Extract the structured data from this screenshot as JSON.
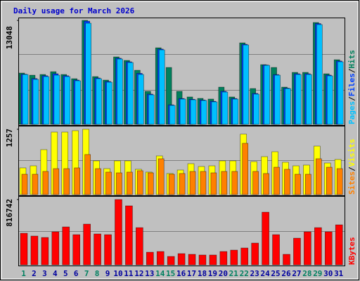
{
  "chart_data": [
    {
      "type": "bar",
      "title": "Daily usage for March 2026",
      "title_color": "#0000cc",
      "ylim": [
        0,
        13048
      ],
      "yticks": [
        13048
      ],
      "legend_separator": "/",
      "series": [
        {
          "name": "Hits",
          "color": "#00805c",
          "values": [
            6436,
            6171,
            6259,
            6612,
            6259,
            5730,
            13048,
            5995,
            5554,
            8463,
            8023,
            6788,
            4144,
            9609,
            7141,
            4144,
            3438,
            3262,
            3174,
            4672,
            3438,
            10227,
            4496,
            7494,
            7141,
            4672,
            6524,
            6524,
            12783,
            6348,
            8111
          ]
        },
        {
          "name": "Files",
          "color": "#0040ff",
          "values": [
            6300,
            5750,
            6100,
            6350,
            6100,
            5560,
            12950,
            5820,
            5380,
            8300,
            7850,
            6400,
            3800,
            9450,
            2450,
            3250,
            3150,
            3060,
            2900,
            4150,
            3250,
            10050,
            3880,
            7450,
            6250,
            4550,
            6350,
            6350,
            12650,
            6180,
            7950
          ]
        },
        {
          "name": "Pages",
          "color": "#00c0ff",
          "values": [
            6259,
            5642,
            5995,
            6171,
            5995,
            5466,
            12695,
            5730,
            5290,
            8199,
            7758,
            6259,
            3703,
            9345,
            2380,
            3174,
            3086,
            2997,
            2821,
            4055,
            3174,
            9962,
            3791,
            7405,
            6171,
            4496,
            6259,
            6259,
            12519,
            6083,
            7846
          ]
        }
      ]
    },
    {
      "type": "bar",
      "ylim": [
        0,
        1257
      ],
      "yticks": [
        1257
      ],
      "legend_separator": "/",
      "series": [
        {
          "name": "Visits",
          "color": "#ffff00",
          "values": [
            514,
            554,
            865,
            1203,
            1203,
            1230,
            1257,
            649,
            500,
            649,
            649,
            487,
            433,
            744,
            406,
            473,
            595,
            541,
            554,
            649,
            649,
            1163,
            635,
            730,
            825,
            622,
            554,
            568,
            933,
            608,
            676
          ]
        },
        {
          "name": "Sites",
          "color": "#ff8000",
          "values": [
            392,
            392,
            446,
            500,
            500,
            514,
            771,
            500,
            433,
            419,
            433,
            460,
            419,
            690,
            392,
            406,
            446,
            446,
            419,
            446,
            446,
            987,
            446,
            406,
            527,
            487,
            392,
            392,
            690,
            527,
            500
          ]
        }
      ]
    },
    {
      "type": "bar",
      "ylim": [
        0,
        816742
      ],
      "yticks": [
        816742
      ],
      "categories": [
        "1",
        "2",
        "3",
        "4",
        "5",
        "6",
        "7",
        "8",
        "9",
        "10",
        "11",
        "12",
        "13",
        "14",
        "15",
        "16",
        "17",
        "18",
        "19",
        "20",
        "21",
        "22",
        "23",
        "24",
        "25",
        "26",
        "27",
        "28",
        "29",
        "30",
        "31"
      ],
      "category_colors": [
        "#008060",
        "#00009f",
        "#00009f",
        "#00009f",
        "#00009f",
        "#00009f",
        "#008060",
        "#008060",
        "#00009f",
        "#00009f",
        "#00009f",
        "#00009f",
        "#00009f",
        "#008060",
        "#008060",
        "#00009f",
        "#00009f",
        "#00009f",
        "#00009f",
        "#00009f",
        "#008060",
        "#008060",
        "#00009f",
        "#00009f",
        "#00009f",
        "#00009f",
        "#00009f",
        "#008060",
        "#008060",
        "#00009f",
        "#00009f"
      ],
      "series": [
        {
          "name": "KBytes",
          "color": "#ff0000",
          "values": [
            395190,
            360062,
            342498,
            412754,
            474228,
            377626,
            509356,
            386408,
            377626,
            816742,
            737688,
            465446,
            158076,
            166858,
            105384,
            140512,
            131730,
            122948,
            122948,
            166858,
            184422,
            210768,
            272242,
            658650,
            377626,
            131730,
            333716,
            412754,
            465446,
            412754,
            500574
          ]
        }
      ]
    }
  ]
}
